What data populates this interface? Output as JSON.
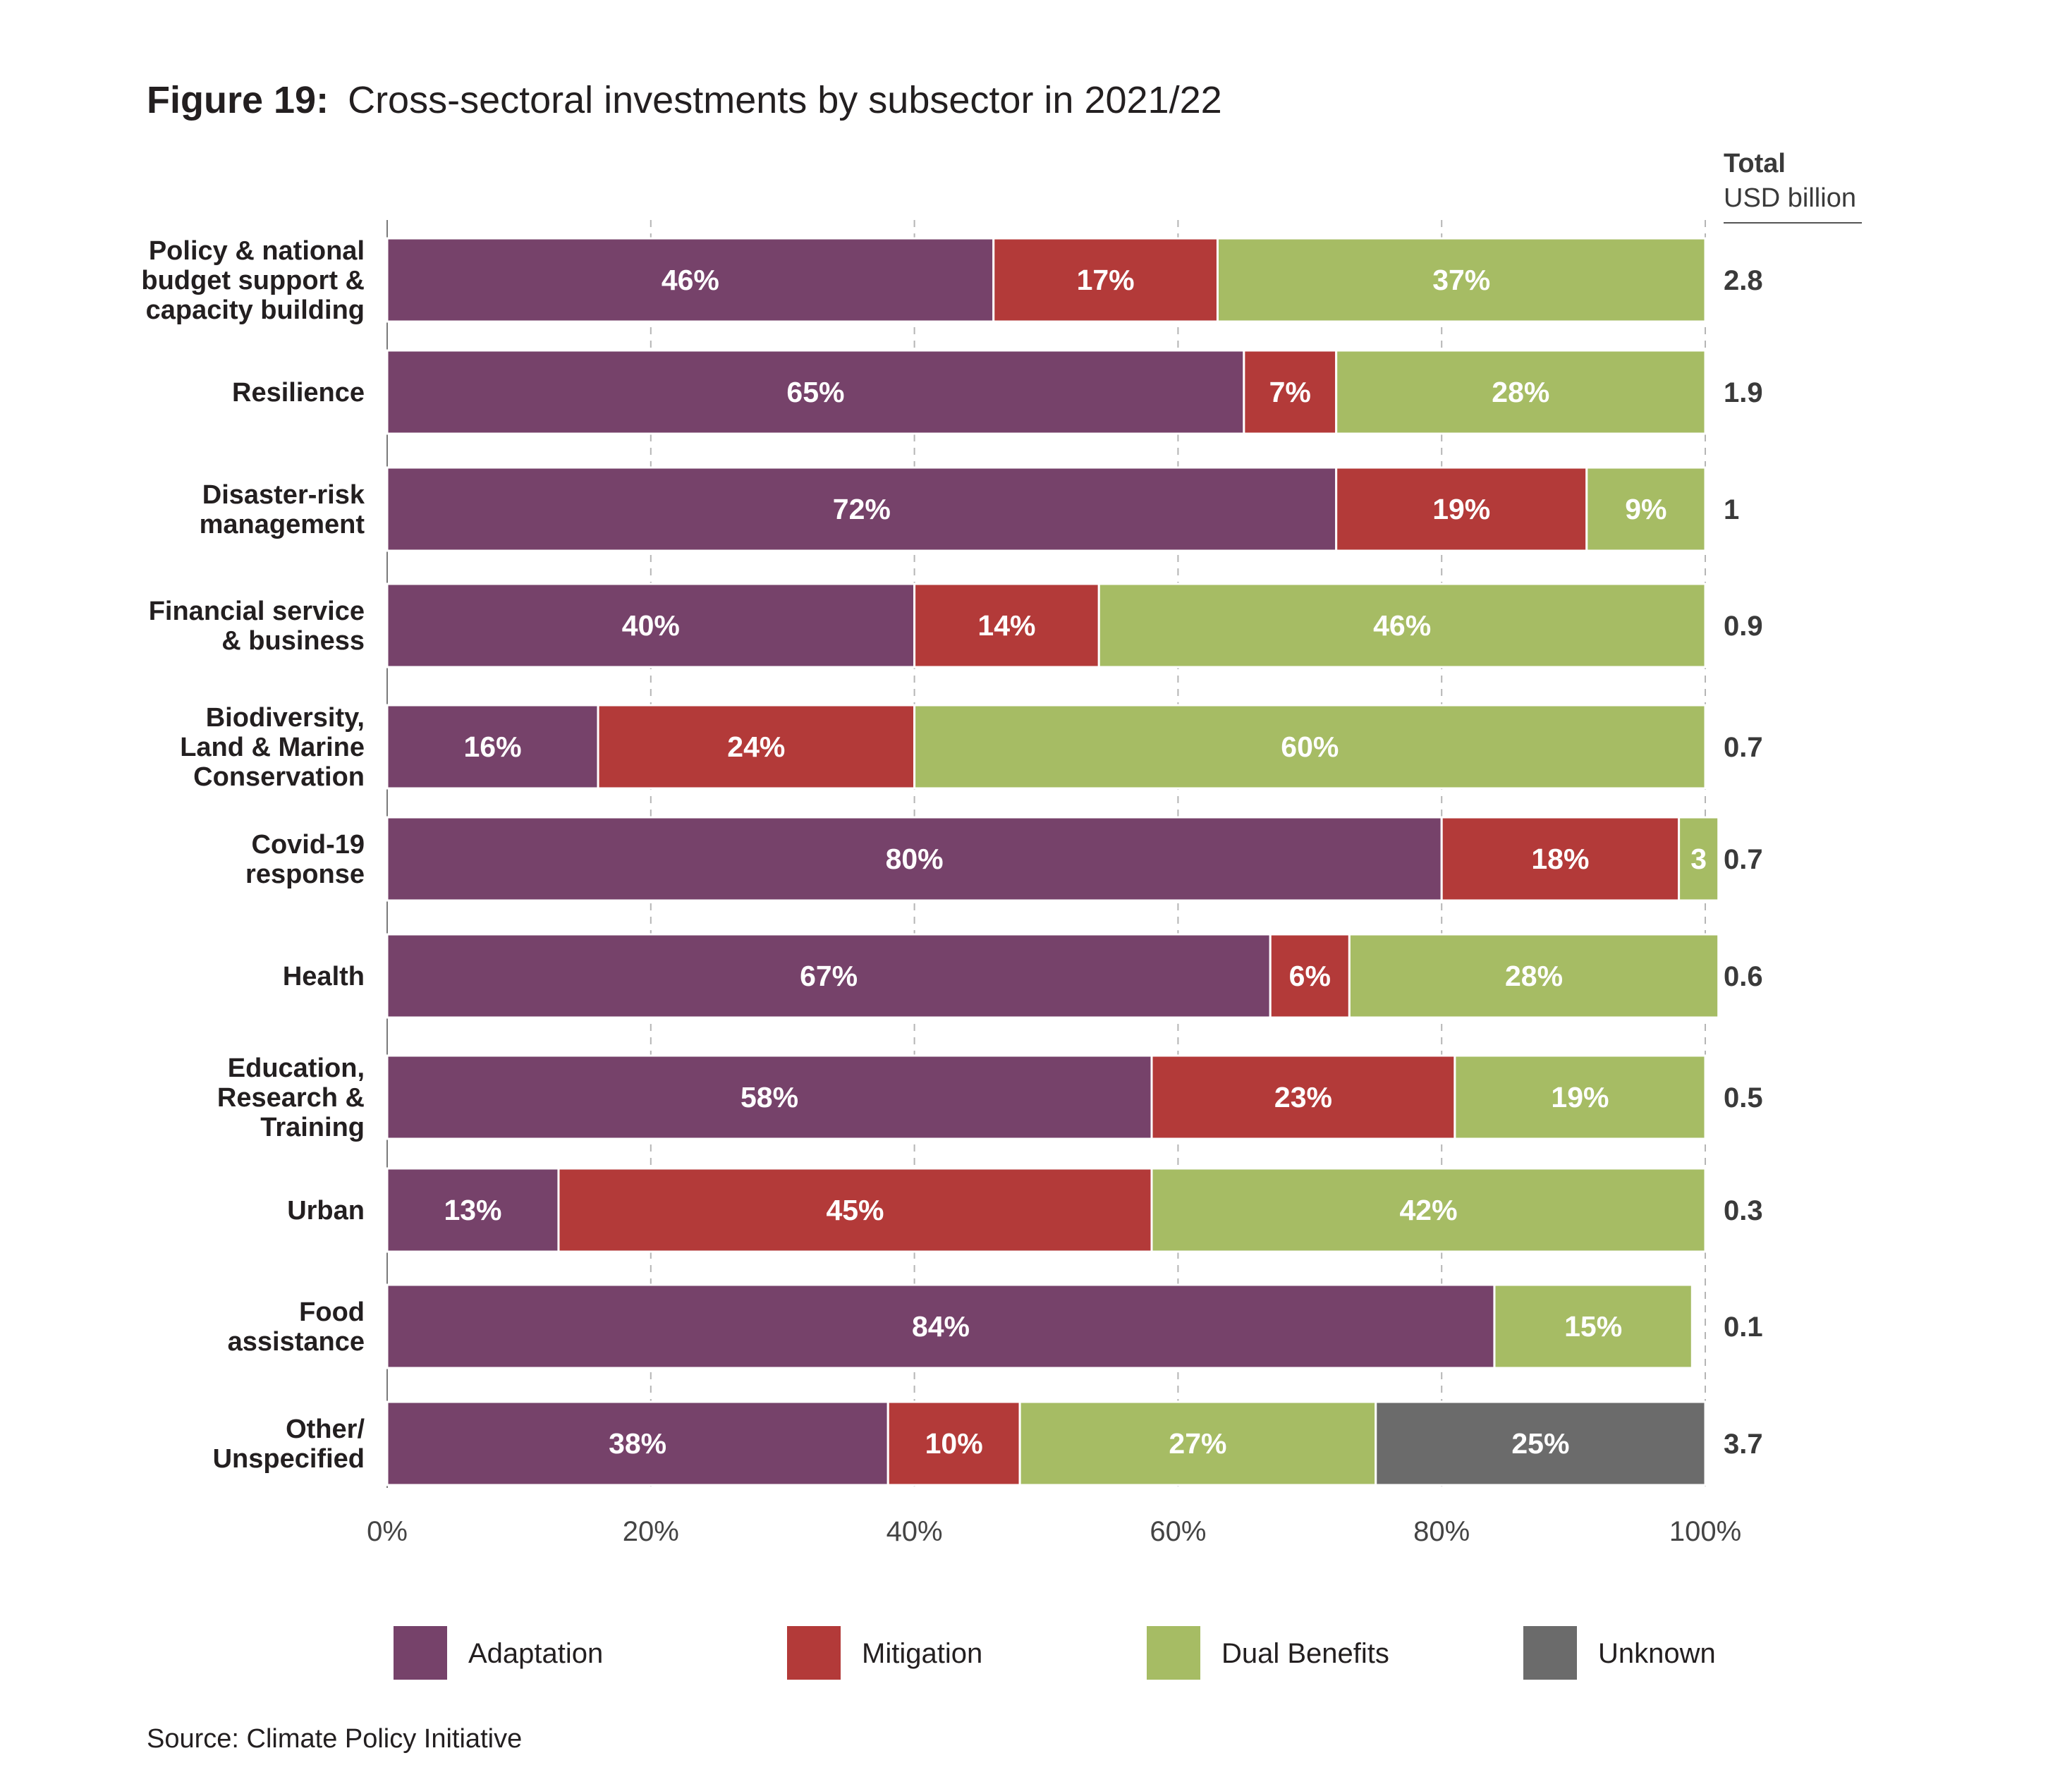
{
  "figure": {
    "label": "Figure 19:",
    "title": "Cross-sectoral investments by subsector in 2021/22",
    "source": "Source: Climate Policy Initiative"
  },
  "totals_header": {
    "title": "Total",
    "unit": "USD billion"
  },
  "colors": {
    "Adaptation": "#76426a",
    "Mitigation": "#b33a39",
    "Dual Benefits": "#a6bc64",
    "Unknown": "#6b6b6b"
  },
  "chart_data": {
    "type": "bar",
    "orientation": "horizontal",
    "stacked": "100%",
    "categories": [
      [
        "Policy & national",
        "budget support &",
        "capacity building"
      ],
      [
        "Resilience"
      ],
      [
        "Disaster-risk",
        "management"
      ],
      [
        "Financial service",
        "& business"
      ],
      [
        "Biodiversity,",
        "Land & Marine",
        "Conservation"
      ],
      [
        "Covid-19",
        "response"
      ],
      [
        "Health"
      ],
      [
        "Education,",
        "Research &",
        "Training"
      ],
      [
        "Urban"
      ],
      [
        "Food",
        "assistance"
      ],
      [
        "Other/",
        "Unspecified"
      ]
    ],
    "series": [
      {
        "name": "Adaptation",
        "values": [
          46,
          65,
          72,
          40,
          16,
          80,
          67,
          58,
          13,
          84,
          38
        ],
        "labels": [
          "46%",
          "65%",
          "72%",
          "40%",
          "16%",
          "80%",
          "67%",
          "58%",
          "13%",
          "84%",
          "38%"
        ]
      },
      {
        "name": "Mitigation",
        "values": [
          17,
          7,
          19,
          14,
          24,
          18,
          6,
          23,
          45,
          0,
          10
        ],
        "labels": [
          "17%",
          "7%",
          "19%",
          "14%",
          "24%",
          "18%",
          "6%",
          "23%",
          "45%",
          "",
          "10%"
        ]
      },
      {
        "name": "Dual Benefits",
        "values": [
          37,
          28,
          9,
          46,
          60,
          3,
          28,
          19,
          42,
          15,
          27
        ],
        "labels": [
          "37%",
          "28%",
          "9%",
          "46%",
          "60%",
          "3",
          "28%",
          "19%",
          "42%",
          "15%",
          "27%"
        ]
      },
      {
        "name": "Unknown",
        "values": [
          0,
          0,
          0,
          0,
          0,
          0,
          0,
          0,
          0,
          0,
          25
        ],
        "labels": [
          "",
          "",
          "",
          "",
          "",
          "",
          "",
          "",
          "",
          "",
          "25%"
        ]
      }
    ],
    "totals": [
      "2.8",
      "1.9",
      "1",
      "0.9",
      "0.7",
      "0.7",
      "0.6",
      "0.5",
      "0.3",
      "0.1",
      "3.7"
    ],
    "xlim": [
      0,
      100
    ],
    "xticks": [
      "0%",
      "20%",
      "40%",
      "60%",
      "80%",
      "100%"
    ],
    "grid": "vertical dashed",
    "legend_position": "bottom"
  }
}
